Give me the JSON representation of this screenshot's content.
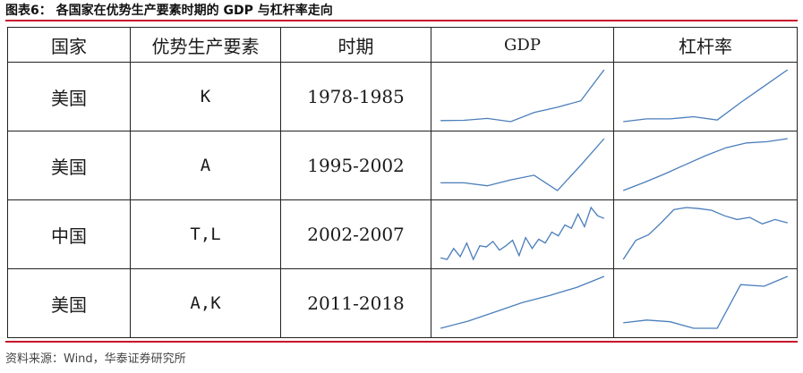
{
  "caption": "图表6：  各国家在优势生产要素时期的 GDP 与杠杆率走向",
  "headers": [
    "国家",
    "优势生产要素",
    "时期",
    "GDP",
    "杠杆率"
  ],
  "rows": [
    {
      "country": "美国",
      "factor": "K",
      "period": "1978-1985",
      "gdp": [
        5,
        5.5,
        9,
        3,
        20,
        30,
        42,
        100
      ],
      "leverage": [
        5,
        10,
        10,
        14,
        8,
        40,
        70,
        100
      ]
    },
    {
      "country": "美国",
      "factor": "A",
      "period": "1995-2002",
      "gdp": [
        25,
        25,
        20,
        30,
        38,
        12,
        55,
        100
      ],
      "leverage": [
        5,
        18,
        32,
        47,
        62,
        75,
        83,
        85,
        90
      ]
    },
    {
      "country": "中国",
      "factor": "T,L",
      "period": "2002-2007",
      "gdp": [
        8,
        5,
        25,
        10,
        35,
        5,
        30,
        28,
        38,
        22,
        30,
        40,
        12,
        45,
        25,
        42,
        35,
        55,
        48,
        68,
        62,
        88,
        65,
        100,
        85,
        80
      ],
      "leverage": [
        5,
        40,
        50,
        72,
        96,
        100,
        98,
        95,
        85,
        78,
        82,
        70,
        78,
        72
      ]
    },
    {
      "country": "美国",
      "factor": "A,K",
      "period": "2011-2018",
      "gdp": [
        5,
        18,
        35,
        52,
        65,
        80,
        100
      ],
      "leverage": [
        15,
        20,
        17,
        5,
        5,
        85,
        82,
        100
      ]
    }
  ],
  "source": "资料来源：Wind，华泰证券研究所",
  "colors": {
    "accent_rule": "#c8102e",
    "sparkline": "#4a7ebb"
  }
}
